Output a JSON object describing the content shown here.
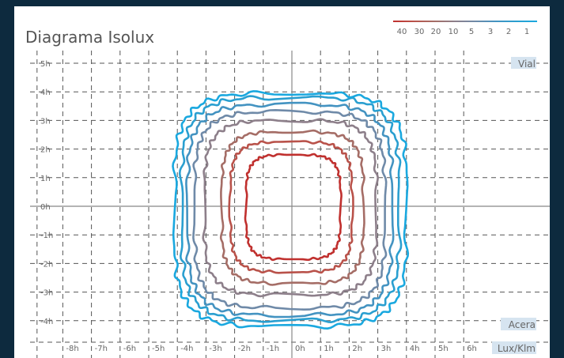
{
  "chart_data": {
    "type": "contour",
    "title": "Diagrama Isolux",
    "legend_values": [
      "40",
      "30",
      "20",
      "10",
      "5",
      "3",
      "2",
      "1"
    ],
    "legend_placement": "top-right",
    "x_ticks": [
      "-8h",
      "-7h",
      "-6h",
      "-5h",
      "-4h",
      "-3h",
      "-2h",
      "-1h",
      "0h",
      "1h",
      "2h",
      "3h",
      "4h",
      "5h",
      "6h"
    ],
    "y_ticks": [
      "5h",
      "4h",
      "3h",
      "2h",
      "1h",
      "0h",
      "-1h",
      "-2h",
      "-3h",
      "-4h"
    ],
    "xlim": [
      -9,
      8.5
    ],
    "ylim": [
      -5.2,
      5.6
    ],
    "grid": "dashed",
    "labels": {
      "top_right": "Vial",
      "bottom_right": "Acera",
      "unit": "Lux/Klm"
    },
    "colors": {
      "background": "#0d2a3e",
      "grid": "#555555",
      "axis": "#888888",
      "label_box": "#d6e4f0",
      "text": "#666666"
    },
    "isolines": [
      {
        "level": "40",
        "color": "#c0302e",
        "x_range": [
          -1.6,
          1.7
        ],
        "y_range": [
          -1.85,
          1.8
        ]
      },
      {
        "level": "30",
        "color": "#b9524a",
        "x_range": [
          -2.15,
          2.1
        ],
        "y_range": [
          -2.3,
          2.25
        ]
      },
      {
        "level": "20",
        "color": "#a56d66",
        "x_range": [
          -2.45,
          2.5
        ],
        "y_range": [
          -2.7,
          2.6
        ]
      },
      {
        "level": "10",
        "color": "#8d7f8a",
        "x_range": [
          -3.05,
          2.95
        ],
        "y_range": [
          -3.1,
          3.0
        ]
      },
      {
        "level": "5",
        "color": "#6f8aa8",
        "x_range": [
          -3.4,
          3.25
        ],
        "y_range": [
          -3.55,
          3.3
        ]
      },
      {
        "level": "3",
        "color": "#4393c1",
        "x_range": [
          -3.65,
          3.5
        ],
        "y_range": [
          -3.8,
          3.55
        ]
      },
      {
        "level": "2",
        "color": "#2a9fd0",
        "x_range": [
          -3.85,
          3.75
        ],
        "y_range": [
          -4.0,
          3.8
        ]
      },
      {
        "level": "1",
        "color": "#1aa8df",
        "x_range": [
          -4.1,
          4.0
        ],
        "y_range": [
          -4.2,
          3.95
        ]
      }
    ]
  }
}
